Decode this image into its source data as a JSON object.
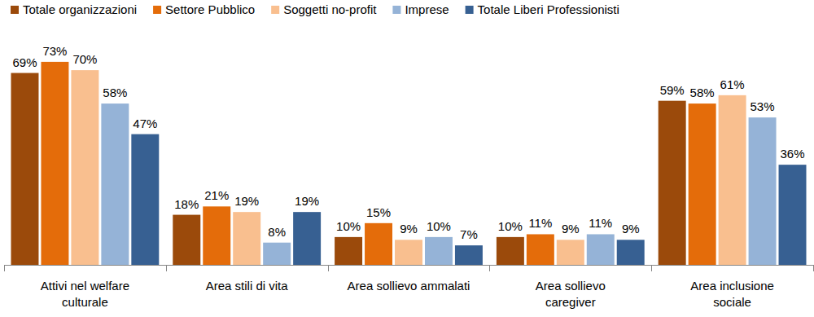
{
  "chart_data": {
    "type": "bar",
    "categories": [
      "Attivi nel welfare culturale",
      "Area stili di vita",
      "Area sollievo ammalati",
      "Area sollievo caregiver",
      "Area inclusione sociale"
    ],
    "series": [
      {
        "name": "Totale organizzazioni",
        "color": "#9b4a0b",
        "values": [
          69,
          18,
          10,
          10,
          59
        ],
        "value_labels": [
          "69%",
          "18%",
          "10%",
          "10%",
          "59%"
        ]
      },
      {
        "name": "Settore Pubblico",
        "color": "#e46c0a",
        "values": [
          73,
          21,
          15,
          11,
          58
        ],
        "value_labels": [
          "73%",
          "21%",
          "15%",
          "11%",
          "58%"
        ]
      },
      {
        "name": "Soggetti no-profit",
        "color": "#f9bf8f",
        "values": [
          70,
          19,
          9,
          9,
          61
        ],
        "value_labels": [
          "70%",
          "19%",
          "9%",
          "9%",
          "61%"
        ]
      },
      {
        "name": "Imprese",
        "color": "#95b3d7",
        "values": [
          58,
          8,
          10,
          11,
          53
        ],
        "value_labels": [
          "58%",
          "8%",
          "10%",
          "11%",
          "53%"
        ]
      },
      {
        "name": "Totale Liberi Professionisti",
        "color": "#376092",
        "values": [
          47,
          19,
          7,
          9,
          36
        ],
        "value_labels": [
          "47%",
          "19%",
          "7%",
          "9%",
          "36%"
        ]
      }
    ],
    "ylim": [
      0,
      80
    ],
    "data_labels": true,
    "tick_labels": "x",
    "legend": "top"
  }
}
